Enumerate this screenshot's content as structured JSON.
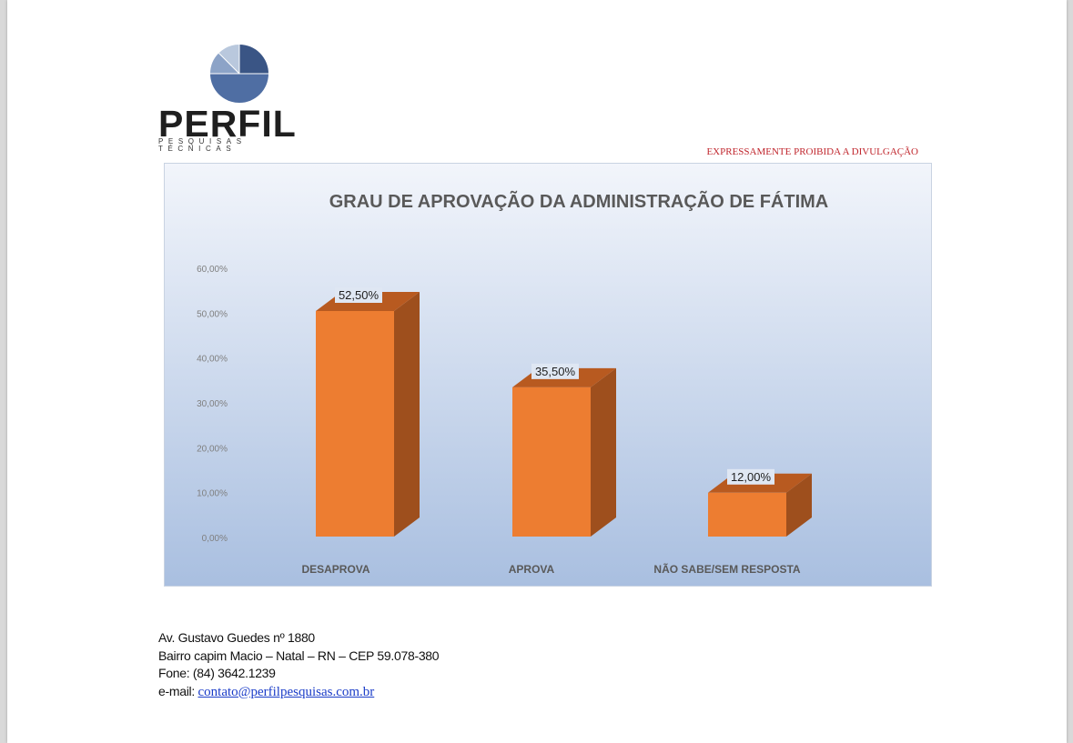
{
  "header": {
    "logo_word": "PERFIL",
    "logo_subtitle": "PESQUISAS TÉCNICAS",
    "warning": "EXPRESSAMENTE PROIBIDA A DIVULGAÇÃO"
  },
  "chart_data": {
    "type": "bar",
    "title": "GRAU DE APROVAÇÃO DA ADMINISTRAÇÃO DE FÁTIMA",
    "categories": [
      "DESAPROVA",
      "APROVA",
      "NÃO SABE/SEM RESPOSTA"
    ],
    "values": [
      52.5,
      35.5,
      12.0
    ],
    "value_labels": [
      "52,50%",
      "35,50%",
      "12,00%"
    ],
    "yticks": [
      "0,00%",
      "10,00%",
      "20,00%",
      "30,00%",
      "40,00%",
      "50,00%",
      "60,00%"
    ],
    "ylim": [
      0,
      60
    ],
    "grid": false,
    "style": "3d-column",
    "bar_color": "#ed7d31",
    "bar_side_color": "#9e4f1d",
    "background_top": "#f2f5fb",
    "background_bottom": "#a9bfe0"
  },
  "footer": {
    "address": "Av. Gustavo Guedes nº 1880",
    "district": "Bairro capim Macio – Natal – RN – CEP 59.078-380",
    "phone": "Fone: (84) 3642.1239",
    "email_label": "e-mail: ",
    "email": "contato@perfilpesquisas.com.br"
  }
}
